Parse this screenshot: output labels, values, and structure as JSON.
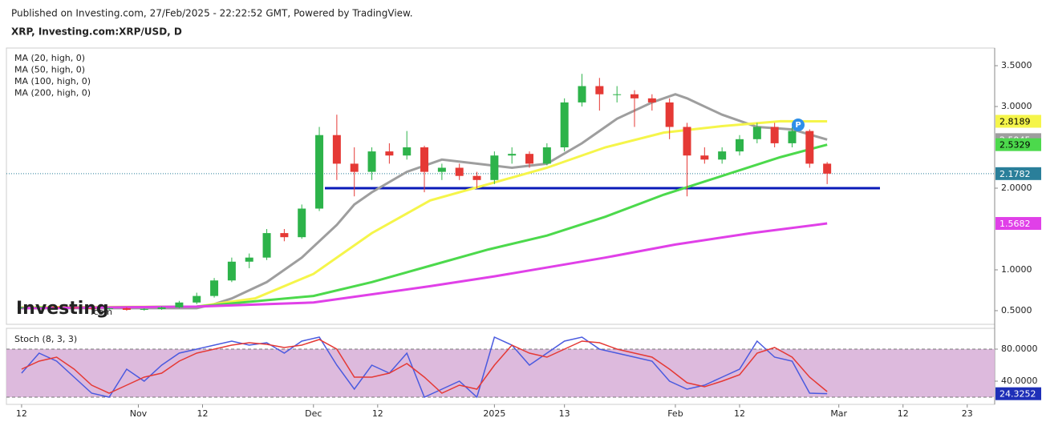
{
  "header": {
    "published": "Published on Investing.com, 27/Feb/2025 - 22:22:52 GMT, Powered by TradingView.",
    "symbol": "XRP, Investing.com:XRP/USD, D"
  },
  "logo": {
    "name": "Investing",
    "suffix": ".com"
  },
  "chart_data": [
    {
      "type": "candlestick",
      "x": [
        0,
        3,
        6,
        9,
        12,
        15,
        18,
        21,
        24,
        27,
        30,
        33,
        36,
        39,
        42,
        45,
        48,
        51,
        54,
        57,
        60,
        63,
        66,
        69,
        72,
        75,
        78,
        81,
        84,
        87,
        90,
        93,
        96,
        99,
        102,
        105,
        108,
        111,
        114,
        117,
        120,
        123,
        126,
        129,
        132,
        135,
        138
      ],
      "open": [
        0.53,
        0.54,
        0.55,
        0.54,
        0.53,
        0.52,
        0.53,
        0.51,
        0.52,
        0.54,
        0.6,
        0.68,
        0.87,
        1.1,
        1.15,
        1.45,
        1.4,
        1.75,
        2.65,
        2.3,
        2.2,
        2.45,
        2.4,
        2.5,
        2.2,
        2.25,
        2.15,
        2.1,
        2.4,
        2.42,
        2.3,
        2.5,
        3.05,
        3.25,
        3.15,
        3.15,
        3.1,
        3.05,
        2.75,
        2.4,
        2.35,
        2.45,
        2.6,
        2.75,
        2.55,
        2.7,
        2.3
      ],
      "high": [
        0.55,
        0.56,
        0.56,
        0.55,
        0.54,
        0.54,
        0.54,
        0.53,
        0.55,
        0.62,
        0.72,
        0.9,
        1.15,
        1.2,
        1.5,
        1.5,
        1.8,
        2.75,
        2.9,
        2.5,
        2.5,
        2.55,
        2.7,
        2.52,
        2.3,
        2.3,
        2.2,
        2.45,
        2.5,
        2.45,
        2.55,
        3.1,
        3.4,
        3.35,
        3.25,
        3.2,
        3.15,
        3.1,
        2.8,
        2.5,
        2.5,
        2.65,
        2.8,
        2.8,
        2.75,
        2.72,
        2.32
      ],
      "low": [
        0.52,
        0.53,
        0.53,
        0.52,
        0.51,
        0.51,
        0.5,
        0.5,
        0.51,
        0.53,
        0.58,
        0.66,
        0.85,
        1.02,
        1.12,
        1.35,
        1.38,
        1.72,
        2.1,
        1.9,
        2.1,
        2.3,
        2.35,
        1.95,
        2.1,
        2.1,
        2.0,
        2.05,
        2.3,
        2.25,
        2.28,
        2.45,
        3.0,
        2.95,
        3.05,
        2.75,
        2.95,
        2.6,
        1.9,
        2.3,
        2.3,
        2.4,
        2.55,
        2.5,
        2.5,
        2.25,
        2.05
      ],
      "close": [
        0.54,
        0.55,
        0.54,
        0.53,
        0.52,
        0.53,
        0.51,
        0.52,
        0.54,
        0.6,
        0.68,
        0.87,
        1.1,
        1.15,
        1.45,
        1.4,
        1.75,
        2.65,
        2.3,
        2.2,
        2.45,
        2.4,
        2.5,
        2.2,
        2.25,
        2.15,
        2.1,
        2.4,
        2.42,
        2.3,
        2.5,
        3.05,
        3.25,
        3.15,
        3.15,
        3.1,
        3.05,
        2.75,
        2.4,
        2.35,
        2.45,
        2.6,
        2.75,
        2.55,
        2.7,
        2.3,
        2.1782
      ],
      "up_color": "#2db34a",
      "down_color": "#e53935",
      "series": [
        {
          "name": "MA (20, high, 0)",
          "color": "#9e9e9e",
          "x": [
            0,
            30,
            33,
            36,
            42,
            48,
            54,
            57,
            60,
            66,
            72,
            78,
            84,
            90,
            96,
            102,
            108,
            112,
            114,
            120,
            126,
            132,
            138
          ],
          "values": [
            0.53,
            0.53,
            0.58,
            0.65,
            0.85,
            1.15,
            1.55,
            1.8,
            1.95,
            2.2,
            2.35,
            2.3,
            2.25,
            2.3,
            2.55,
            2.85,
            3.05,
            3.15,
            3.1,
            2.9,
            2.75,
            2.72,
            2.5945
          ]
        },
        {
          "name": "MA (50, high, 0)",
          "color": "#f5f54a",
          "x": [
            0,
            30,
            40,
            50,
            60,
            70,
            80,
            90,
            100,
            110,
            120,
            130,
            138
          ],
          "values": [
            0.54,
            0.55,
            0.65,
            0.95,
            1.45,
            1.85,
            2.05,
            2.25,
            2.5,
            2.68,
            2.76,
            2.82,
            2.8189
          ]
        },
        {
          "name": "MA (100, high, 0)",
          "color": "#4cd94c",
          "x": [
            0,
            30,
            50,
            60,
            70,
            80,
            90,
            100,
            110,
            120,
            130,
            138
          ],
          "values": [
            0.53,
            0.55,
            0.68,
            0.85,
            1.05,
            1.25,
            1.42,
            1.65,
            1.92,
            2.15,
            2.38,
            2.5329
          ]
        },
        {
          "name": "MA (200, high, 0)",
          "color": "#e040e8",
          "x": [
            0,
            30,
            50,
            70,
            81,
            100,
            112,
            125,
            138
          ],
          "values": [
            0.53,
            0.55,
            0.6,
            0.8,
            0.92,
            1.15,
            1.31,
            1.45,
            1.5682
          ]
        }
      ],
      "levels": [
        2.0
      ],
      "level_color": "#0a1ab8",
      "ylim": [
        0.333,
        3.716
      ],
      "yticks": [
        {
          "value": 0.5,
          "label": "0.5000"
        },
        {
          "value": 1.0,
          "label": "1.0000"
        },
        {
          "value": 2.0,
          "label": "2.0000"
        },
        {
          "value": 3.0,
          "label": "3.0000"
        },
        {
          "value": 3.5,
          "label": "3.5000"
        }
      ],
      "xlim": [
        -2.6,
        166.7
      ]
    },
    {
      "type": "line",
      "title": "Stoch (8, 3, 3)",
      "x": [
        0,
        3,
        6,
        9,
        12,
        15,
        18,
        21,
        24,
        27,
        30,
        33,
        36,
        39,
        42,
        45,
        48,
        51,
        54,
        57,
        60,
        63,
        66,
        69,
        72,
        75,
        78,
        81,
        84,
        87,
        90,
        93,
        96,
        99,
        102,
        105,
        108,
        111,
        114,
        117,
        120,
        123,
        126,
        129,
        132,
        135,
        138
      ],
      "series": [
        {
          "name": "%K",
          "color": "#4a5adf",
          "values": [
            50,
            75,
            65,
            45,
            25,
            20,
            55,
            40,
            60,
            75,
            80,
            85,
            90,
            85,
            88,
            75,
            90,
            95,
            60,
            30,
            60,
            50,
            75,
            20,
            30,
            40,
            20,
            95,
            85,
            60,
            75,
            90,
            95,
            80,
            75,
            70,
            65,
            40,
            30,
            35,
            45,
            55,
            90,
            70,
            65,
            25,
            24.3252
          ]
        },
        {
          "name": "%D",
          "color": "#e53935",
          "values": [
            55,
            65,
            70,
            55,
            35,
            25,
            35,
            45,
            50,
            65,
            75,
            80,
            85,
            88,
            86,
            82,
            85,
            92,
            80,
            45,
            45,
            50,
            62,
            45,
            25,
            35,
            30,
            60,
            85,
            75,
            70,
            80,
            90,
            88,
            80,
            75,
            70,
            55,
            38,
            33,
            40,
            48,
            75,
            82,
            70,
            45,
            27
          ]
        }
      ],
      "band": [
        20,
        80
      ],
      "band_color": "#d9b3d9",
      "ylim": [
        11,
        106
      ],
      "yticks": [
        {
          "value": 40,
          "label": "40.0000"
        },
        {
          "value": 80,
          "label": "80.0000"
        }
      ],
      "xlim": [
        -2.6,
        166.7
      ],
      "xticks": [
        {
          "value": 0,
          "label": "12"
        },
        {
          "value": 20,
          "label": "Nov"
        },
        {
          "value": 31,
          "label": "12"
        },
        {
          "value": 50,
          "label": "Dec"
        },
        {
          "value": 61,
          "label": "12"
        },
        {
          "value": 81,
          "label": "2025"
        },
        {
          "value": 93,
          "label": "13"
        },
        {
          "value": 112,
          "label": "Feb"
        },
        {
          "value": 123,
          "label": "12"
        },
        {
          "value": 140,
          "label": "Mar"
        },
        {
          "value": 151,
          "label": "12"
        },
        {
          "value": 162,
          "label": "23"
        }
      ]
    }
  ]
}
